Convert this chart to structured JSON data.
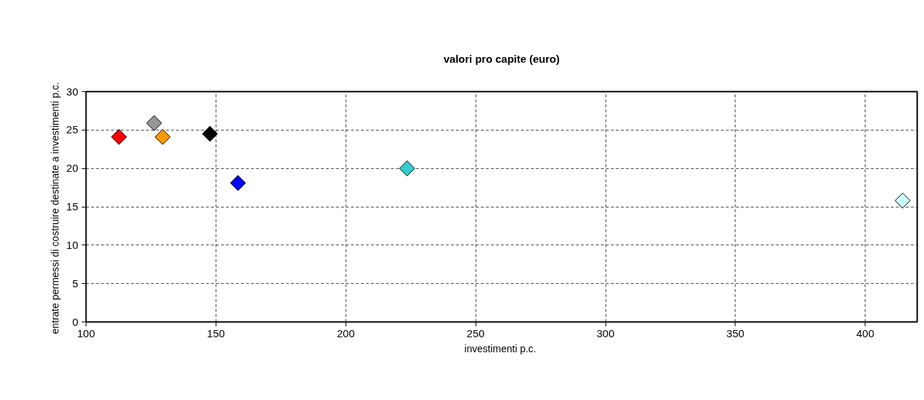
{
  "chart_data": {
    "type": "scatter",
    "title": "valori pro capite (euro)",
    "xlabel": "investimenti  p.c.",
    "ylabel": "entrate permessi di costruire destinate a investimenti  p.c.",
    "x": [
      112.7,
      126.2,
      129.5,
      147.7,
      158.5,
      223.6,
      414.4
    ],
    "values": [
      24.1,
      25.9,
      24.1,
      24.5,
      18.1,
      20.0,
      15.8
    ],
    "colors": [
      "#ff0000",
      "#969696",
      "#ff9900",
      "#000000",
      "#0000ff",
      "#33cccc",
      "#ccffff"
    ],
    "marker": "diamond",
    "xlim": [
      100,
      420
    ],
    "xticks": [
      100,
      150,
      200,
      250,
      300,
      350,
      400
    ],
    "ylim": [
      0,
      30
    ],
    "yticks": [
      0,
      5,
      10,
      15,
      20,
      25,
      30
    ],
    "grid": true
  }
}
